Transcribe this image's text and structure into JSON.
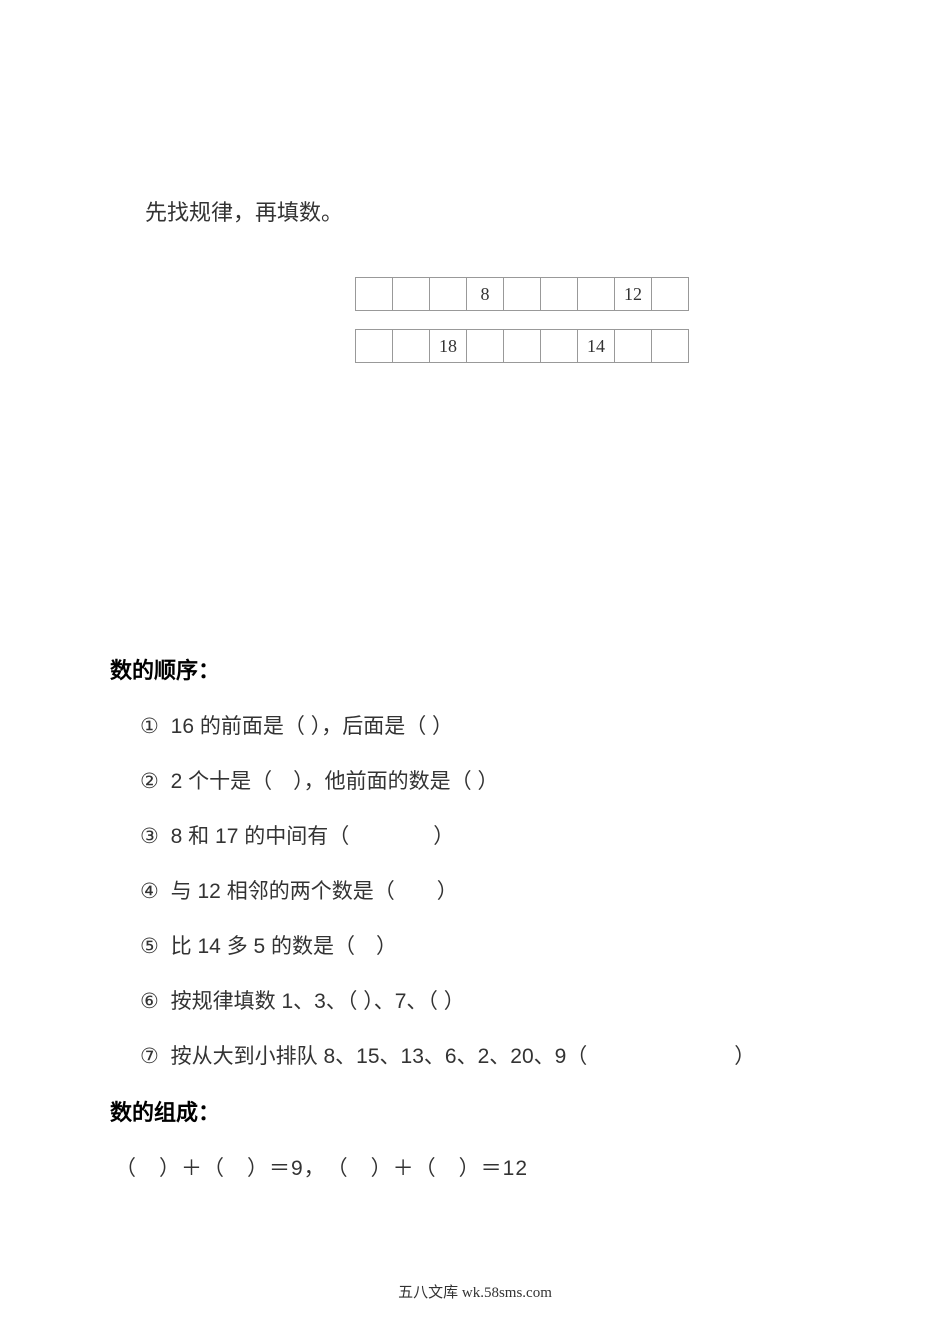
{
  "instruction": "先找规律，再填数。",
  "table1": {
    "cells": [
      "",
      "",
      "",
      "8",
      "",
      "",
      "",
      "12",
      ""
    ]
  },
  "table2": {
    "cells": [
      "",
      "",
      "18",
      "",
      "",
      "",
      "14",
      "",
      ""
    ]
  },
  "section1_title": "数的顺序：",
  "questions": [
    {
      "marker": "①",
      "text": "16 的前面是（ ），后面是（ ）"
    },
    {
      "marker": "②",
      "text": "2 个十是（　），他前面的数是（ ）"
    },
    {
      "marker": "③",
      "text": "8 和 17 的中间有（　　　　）"
    },
    {
      "marker": "④",
      "text": "与 12 相邻的两个数是（　　）"
    },
    {
      "marker": "⑤",
      "text": "比 14 多 5 的数是（　）"
    },
    {
      "marker": "⑥",
      "text": "按规律填数 1、3、（ ）、7、（ ）"
    },
    {
      "marker": "⑦",
      "text": "按从大到小排队 8、15、13、6、2、20、9（　　　　　　　）"
    }
  ],
  "section2_title": "数的组成：",
  "composition": "（　）＋（　）＝9，　（　）＋（　）＝12",
  "footer": "五八文库 wk.58sms.com",
  "colors": {
    "background": "#ffffff",
    "text": "#333333",
    "bold_text": "#000000",
    "border": "#999999"
  }
}
